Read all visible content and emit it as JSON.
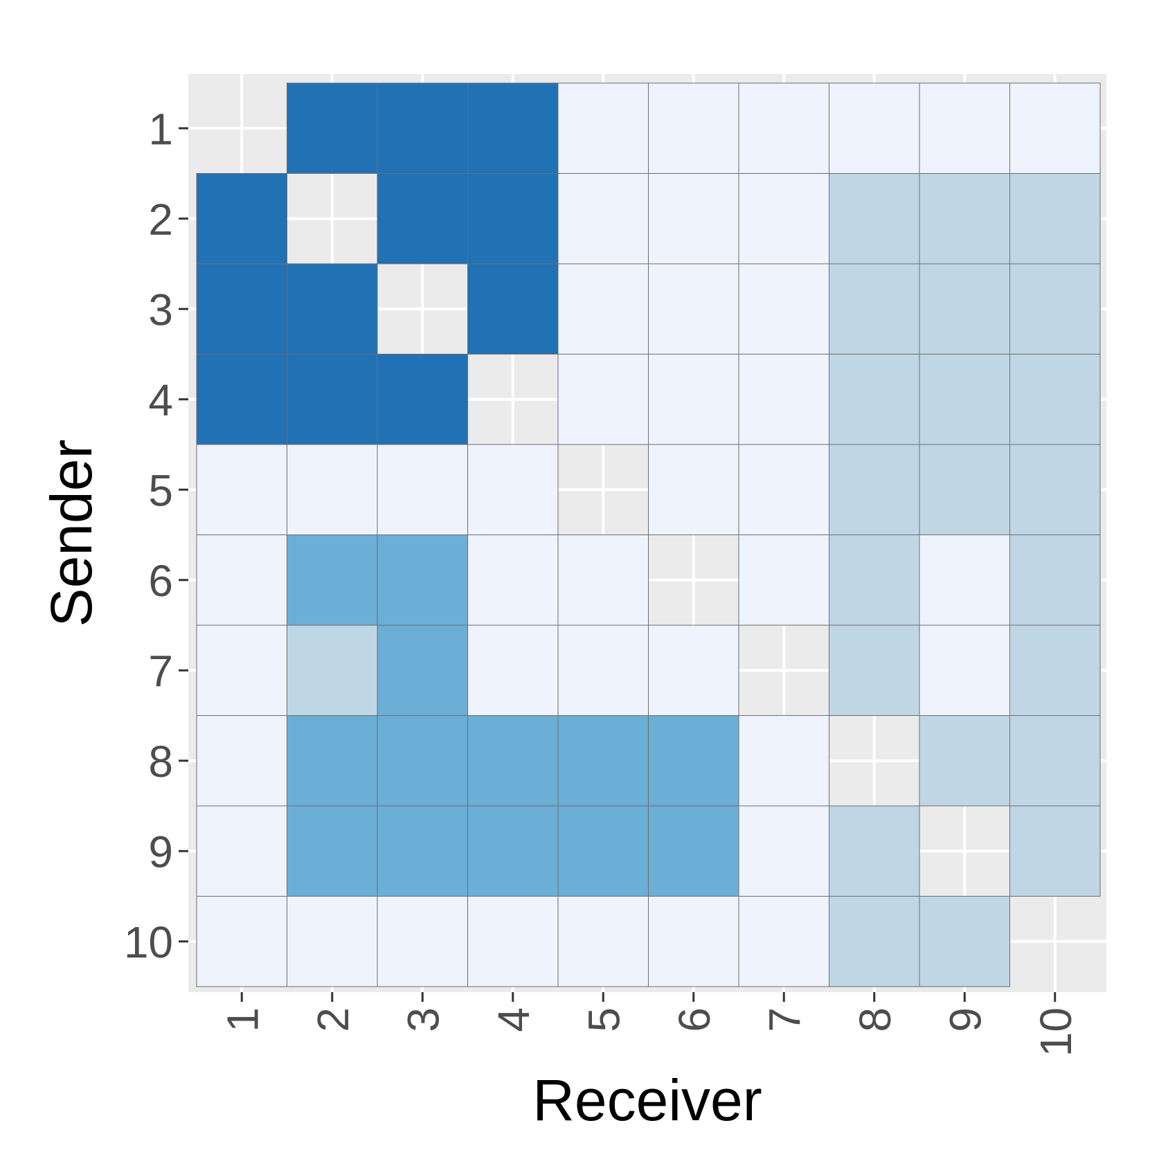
{
  "chart_data": {
    "type": "heatmap",
    "xlabel": "Receiver",
    "ylabel": "Sender",
    "x_categories": [
      "1",
      "2",
      "3",
      "4",
      "5",
      "6",
      "7",
      "8",
      "9",
      "10"
    ],
    "y_categories": [
      "1",
      "2",
      "3",
      "4",
      "5",
      "6",
      "7",
      "8",
      "9",
      "10"
    ],
    "grid": true,
    "legend": "none",
    "colors": {
      "level_0": "#eef3fd",
      "level_1": "#bfd6e4",
      "level_2": "#6baed6",
      "level_3": "#2171b5",
      "panel_background": "#ebebeb",
      "gridline": "#ffffff",
      "cell_border": "#6e6e6e"
    },
    "matrix": [
      [
        null,
        3,
        3,
        3,
        0,
        0,
        0,
        0,
        0,
        0
      ],
      [
        3,
        null,
        3,
        3,
        0,
        0,
        0,
        1,
        1,
        1
      ],
      [
        3,
        3,
        null,
        3,
        0,
        0,
        0,
        1,
        1,
        1
      ],
      [
        3,
        3,
        3,
        null,
        0,
        0,
        0,
        1,
        1,
        1
      ],
      [
        0,
        0,
        0,
        0,
        null,
        0,
        0,
        1,
        1,
        1
      ],
      [
        0,
        2,
        2,
        0,
        0,
        null,
        0,
        1,
        0,
        1
      ],
      [
        0,
        1,
        2,
        0,
        0,
        0,
        null,
        1,
        0,
        1
      ],
      [
        0,
        2,
        2,
        2,
        2,
        2,
        0,
        null,
        1,
        1
      ],
      [
        0,
        2,
        2,
        2,
        2,
        2,
        0,
        1,
        null,
        1
      ],
      [
        0,
        0,
        0,
        0,
        0,
        0,
        0,
        1,
        1,
        null
      ]
    ]
  }
}
